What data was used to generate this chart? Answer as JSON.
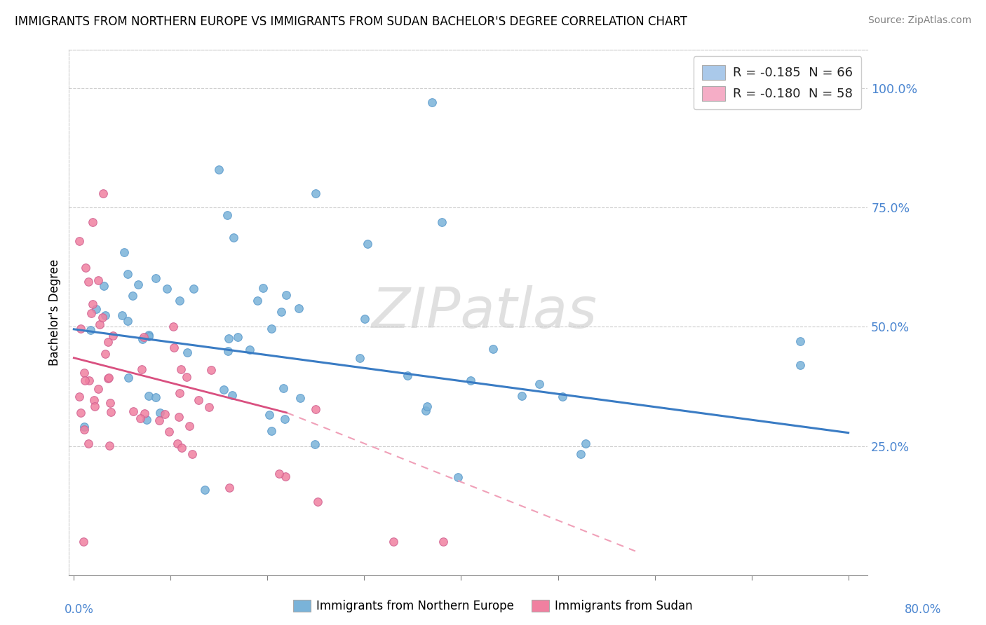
{
  "title": "IMMIGRANTS FROM NORTHERN EUROPE VS IMMIGRANTS FROM SUDAN BACHELOR'S DEGREE CORRELATION CHART",
  "source": "Source: ZipAtlas.com",
  "ylabel": "Bachelor's Degree",
  "y_ticks": [
    "25.0%",
    "50.0%",
    "75.0%",
    "100.0%"
  ],
  "y_tick_vals": [
    0.25,
    0.5,
    0.75,
    1.0
  ],
  "xlim": [
    -0.005,
    0.82
  ],
  "ylim": [
    -0.02,
    1.08
  ],
  "watermark": "ZIPatlas",
  "legend_entries": [
    {
      "label": "R = -0.185  N = 66",
      "color": "#aac9ea"
    },
    {
      "label": "R = -0.180  N = 58",
      "color": "#f5adc6"
    }
  ],
  "series1_label": "Immigrants from Northern Europe",
  "series2_label": "Immigrants from Sudan",
  "series1_color": "#7ab3d9",
  "series2_color": "#f080a0",
  "trendline1_color": "#3a7cc4",
  "trendline2_color": "#d95080",
  "trendline2_dashed_color": "#f0a0b8",
  "trendline1_x0": 0.0,
  "trendline1_x1": 0.8,
  "trendline1_y0": 0.495,
  "trendline1_y1": 0.278,
  "trendline2_solid_x0": 0.0,
  "trendline2_solid_x1": 0.22,
  "trendline2_solid_y0": 0.435,
  "trendline2_solid_y1": 0.32,
  "trendline2_dashed_x0": 0.22,
  "trendline2_dashed_x1": 0.58,
  "trendline2_dashed_y0": 0.32,
  "trendline2_dashed_y1": 0.03
}
